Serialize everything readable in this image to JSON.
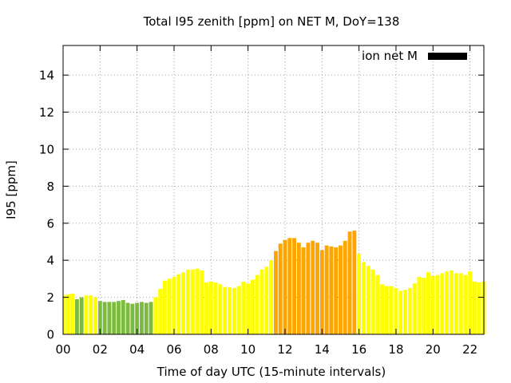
{
  "chart_data": {
    "type": "bar",
    "title": "Total I95 zenith [ppm] on NET M, DoY=138",
    "xlabel": "Time of day UTC (15-minute intervals)",
    "ylabel": "I95 [ppm]",
    "xlim": [
      0,
      22.75
    ],
    "ylim": [
      0,
      15.6
    ],
    "grid": true,
    "legend": {
      "position": "top-right",
      "label": "ion net M",
      "color": "#000000"
    },
    "x_tick_labels": [
      "00",
      "02",
      "04",
      "06",
      "08",
      "10",
      "12",
      "14",
      "16",
      "18",
      "20",
      "22"
    ],
    "x_tick_values": [
      0,
      2,
      4,
      6,
      8,
      10,
      12,
      14,
      16,
      18,
      20,
      22
    ],
    "y_tick_labels": [
      "0",
      "2",
      "4",
      "6",
      "8",
      "10",
      "12",
      "14"
    ],
    "y_tick_values": [
      0,
      2,
      4,
      6,
      8,
      10,
      12,
      14
    ],
    "bar_width_hours": 0.21,
    "colors": {
      "green": "#7cbb3f",
      "yellow": "#ffff00",
      "orange": "#ffa500"
    },
    "series": [
      {
        "values": [
          2.1,
          2.15,
          2.2,
          1.9,
          2.0,
          2.1,
          2.1,
          2.0,
          1.8,
          1.75,
          1.75,
          1.75,
          1.8,
          1.85,
          1.7,
          1.65,
          1.7,
          1.75,
          1.7,
          1.75,
          2.0,
          2.45,
          2.9,
          3.0,
          3.1,
          3.25,
          3.35,
          3.5,
          3.5,
          3.55,
          3.45,
          2.8,
          2.85,
          2.8,
          2.7,
          2.55,
          2.55,
          2.5,
          2.6,
          2.85,
          2.75,
          2.95,
          3.2,
          3.5,
          3.65,
          4.0,
          4.5,
          4.9,
          5.1,
          5.2,
          5.2,
          4.95,
          4.7,
          4.95,
          5.05,
          4.95,
          4.55,
          4.8,
          4.75,
          4.7,
          4.8,
          5.05,
          5.55,
          5.6,
          4.35,
          3.9,
          3.7,
          3.5,
          3.2,
          2.7,
          2.6,
          2.6,
          2.5,
          2.35,
          2.4,
          2.5,
          2.75,
          3.1,
          3.05,
          3.35,
          3.15,
          3.2,
          3.3,
          3.4,
          3.45,
          3.3,
          3.3,
          3.2,
          3.4,
          2.85,
          2.8,
          2.85
        ],
        "colors": [
          "yellow",
          "yellow",
          "yellow",
          "green",
          "green",
          "yellow",
          "yellow",
          "yellow",
          "green",
          "green",
          "green",
          "green",
          "green",
          "green",
          "green",
          "green",
          "green",
          "green",
          "green",
          "green",
          "yellow",
          "yellow",
          "yellow",
          "yellow",
          "yellow",
          "yellow",
          "yellow",
          "yellow",
          "yellow",
          "yellow",
          "yellow",
          "yellow",
          "yellow",
          "yellow",
          "yellow",
          "yellow",
          "yellow",
          "yellow",
          "yellow",
          "yellow",
          "yellow",
          "yellow",
          "yellow",
          "yellow",
          "yellow",
          "yellow",
          "orange",
          "orange",
          "orange",
          "orange",
          "orange",
          "orange",
          "orange",
          "orange",
          "orange",
          "orange",
          "orange",
          "orange",
          "orange",
          "orange",
          "orange",
          "orange",
          "orange",
          "orange",
          "yellow",
          "yellow",
          "yellow",
          "yellow",
          "yellow",
          "yellow",
          "yellow",
          "yellow",
          "yellow",
          "yellow",
          "yellow",
          "yellow",
          "yellow",
          "yellow",
          "yellow",
          "yellow",
          "yellow",
          "yellow",
          "yellow",
          "yellow",
          "yellow",
          "yellow",
          "yellow",
          "yellow",
          "yellow",
          "yellow",
          "yellow",
          "yellow"
        ]
      }
    ]
  }
}
